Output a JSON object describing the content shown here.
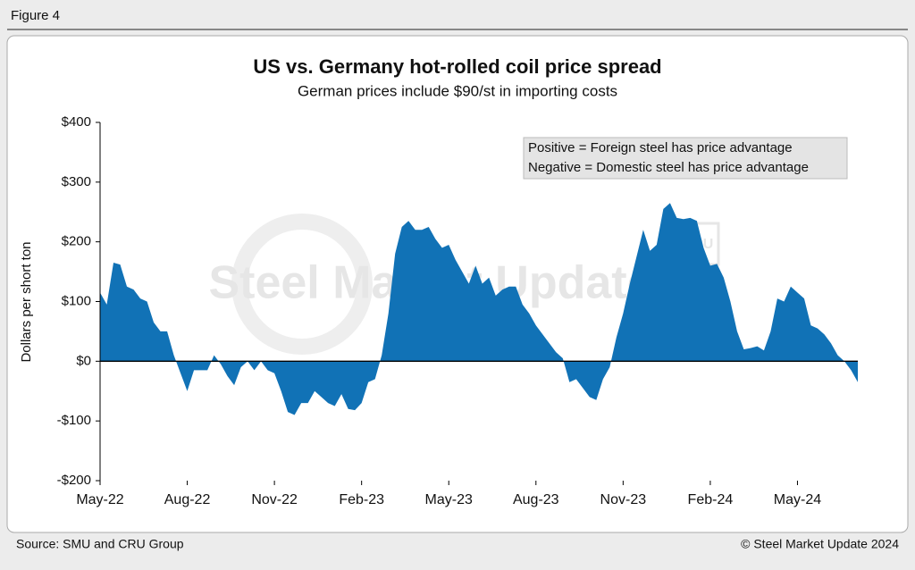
{
  "figure_label": "Figure 4",
  "source": "Source: SMU and CRU Group",
  "copyright": "© Steel Market Update 2024",
  "watermark": {
    "name": "Steel Market Update",
    "logo": "CRU"
  },
  "chart_data": {
    "type": "area",
    "title": "US vs. Germany hot-rolled coil price spread",
    "subtitle": "German prices include $90/st in importing costs",
    "y_label": "Dollars per short ton",
    "annotations": [
      "Positive = Foreign steel has price advantage",
      "Negative = Domestic steel has price advantage"
    ],
    "color": "#1172b6",
    "categories": [
      "May-22",
      null,
      null,
      null,
      null,
      null,
      null,
      null,
      null,
      null,
      null,
      null,
      null,
      "Aug-22",
      null,
      null,
      null,
      null,
      null,
      null,
      null,
      null,
      null,
      null,
      null,
      null,
      "Nov-22",
      null,
      null,
      null,
      null,
      null,
      null,
      null,
      null,
      null,
      null,
      null,
      null,
      "Feb-23",
      null,
      null,
      null,
      null,
      null,
      null,
      null,
      null,
      null,
      null,
      null,
      null,
      "May-23",
      null,
      null,
      null,
      null,
      null,
      null,
      null,
      null,
      null,
      null,
      null,
      null,
      "Aug-23",
      null,
      null,
      null,
      null,
      null,
      null,
      null,
      null,
      null,
      null,
      null,
      null,
      "Nov-23",
      null,
      null,
      null,
      null,
      null,
      null,
      null,
      null,
      null,
      null,
      null,
      null,
      "Feb-24",
      null,
      null,
      null,
      null,
      null,
      null,
      null,
      null,
      null,
      null,
      null,
      null,
      "May-24",
      null,
      null,
      null,
      null,
      null,
      null,
      null,
      null,
      null
    ],
    "values": [
      115,
      95,
      165,
      162,
      125,
      120,
      105,
      100,
      65,
      50,
      50,
      10,
      -20,
      -50,
      -15,
      -15,
      -15,
      10,
      -5,
      -25,
      -40,
      -10,
      0,
      -15,
      0,
      -15,
      -20,
      -50,
      -85,
      -90,
      -70,
      -70,
      -50,
      -60,
      -70,
      -75,
      -55,
      -80,
      -82,
      -70,
      -35,
      -30,
      10,
      80,
      180,
      225,
      235,
      220,
      220,
      225,
      205,
      190,
      195,
      170,
      150,
      130,
      160,
      130,
      140,
      110,
      120,
      125,
      125,
      95,
      80,
      60,
      45,
      30,
      15,
      5,
      -35,
      -30,
      -45,
      -60,
      -65,
      -30,
      -10,
      40,
      80,
      130,
      175,
      220,
      185,
      195,
      255,
      265,
      240,
      238,
      240,
      235,
      190,
      160,
      163,
      140,
      100,
      50,
      20,
      22,
      25,
      18,
      50,
      105,
      100,
      125,
      115,
      105,
      60,
      55,
      45,
      30,
      10,
      0,
      -15,
      -35
    ],
    "ylim": [
      -200,
      400
    ],
    "yticks": [
      {
        "value": -200,
        "label": "-$200"
      },
      {
        "value": -100,
        "label": "-$100"
      },
      {
        "value": 0,
        "label": "$0"
      },
      {
        "value": 100,
        "label": "$100"
      },
      {
        "value": 200,
        "label": "$200"
      },
      {
        "value": 300,
        "label": "$300"
      },
      {
        "value": 400,
        "label": "$400"
      }
    ]
  }
}
